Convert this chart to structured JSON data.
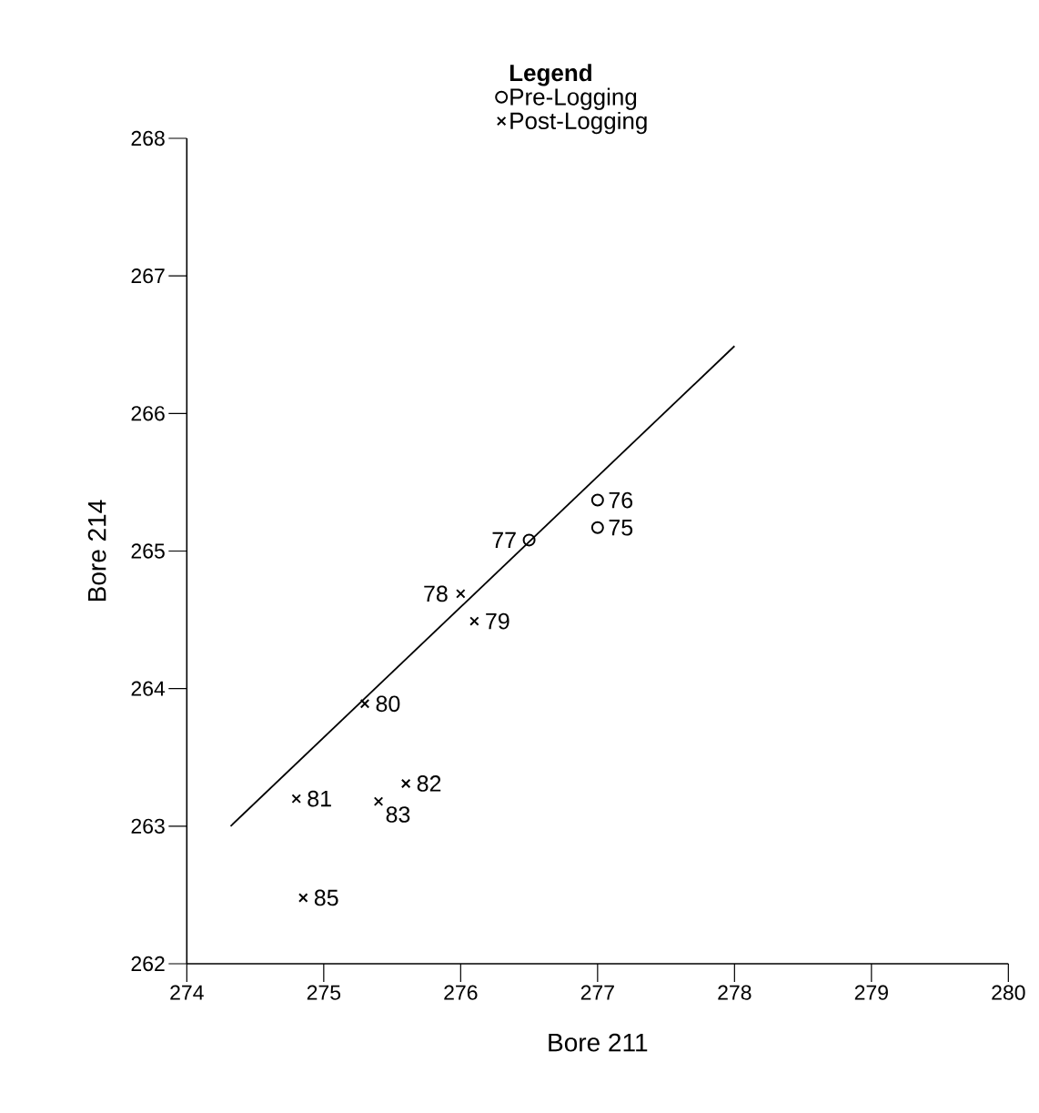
{
  "chart_data": {
    "type": "scatter",
    "xlabel": "Bore 211",
    "ylabel": "Bore 214",
    "legend_title": "Legend",
    "legend": "top",
    "xlim": [
      274,
      280
    ],
    "ylim": [
      262,
      268
    ],
    "xticks": [
      274,
      275,
      276,
      277,
      278,
      279,
      280
    ],
    "yticks": [
      262,
      263,
      264,
      265,
      266,
      267,
      268
    ],
    "series": [
      {
        "name": "Pre-Logging",
        "color": "#000000",
        "marker": "circle",
        "x": [
          277.0,
          277.0,
          276.5
        ],
        "values": [
          265.37,
          265.17,
          265.08
        ]
      },
      {
        "name": "Post-Logging",
        "color": "#000000",
        "marker": "cross",
        "x": [
          276.0,
          276.1,
          275.3,
          274.8,
          275.6,
          275.4,
          274.85
        ],
        "values": [
          264.69,
          264.49,
          263.89,
          263.2,
          263.31,
          263.18,
          262.48
        ]
      },
      {
        "type": "line",
        "color": "#000000",
        "marker": "none",
        "x": [
          274.32,
          278.0
        ],
        "values": [
          263.0,
          266.49
        ]
      }
    ],
    "annotations": [
      {
        "text": "76",
        "x": 277.0,
        "y": 265.37
      },
      {
        "text": "75",
        "x": 277.0,
        "y": 265.17
      },
      {
        "text": "77",
        "x": 276.5,
        "y": 265.08
      },
      {
        "text": "78",
        "x": 276.0,
        "y": 264.69
      },
      {
        "text": "79",
        "x": 276.1,
        "y": 264.49
      },
      {
        "text": "80",
        "x": 275.3,
        "y": 263.89
      },
      {
        "text": "81",
        "x": 274.8,
        "y": 263.2
      },
      {
        "text": "82",
        "x": 275.6,
        "y": 263.31
      },
      {
        "text": "83",
        "x": 275.4,
        "y": 263.18
      },
      {
        "text": "85",
        "x": 274.85,
        "y": 262.48
      }
    ]
  }
}
